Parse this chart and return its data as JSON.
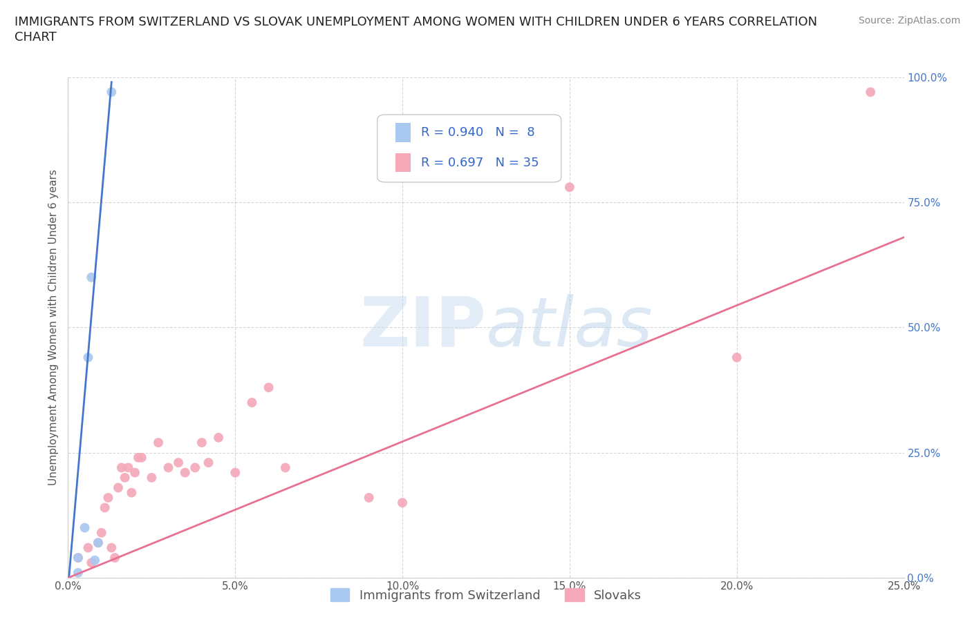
{
  "title_line1": "IMMIGRANTS FROM SWITZERLAND VS SLOVAK UNEMPLOYMENT AMONG WOMEN WITH CHILDREN UNDER 6 YEARS CORRELATION",
  "title_line2": "CHART",
  "source": "Source: ZipAtlas.com",
  "ylabel": "Unemployment Among Women with Children Under 6 years",
  "xlim": [
    0,
    0.25
  ],
  "ylim": [
    0,
    1.0
  ],
  "xticks": [
    0.0,
    0.05,
    0.1,
    0.15,
    0.2,
    0.25
  ],
  "yticks": [
    0.0,
    0.25,
    0.5,
    0.75,
    1.0
  ],
  "xtick_labels": [
    "0.0%",
    "5.0%",
    "10.0%",
    "15.0%",
    "20.0%",
    "25.0%"
  ],
  "ytick_labels": [
    "0.0%",
    "25.0%",
    "50.0%",
    "75.0%",
    "100.0%"
  ],
  "blue_scatter_x": [
    0.003,
    0.003,
    0.005,
    0.006,
    0.007,
    0.008,
    0.009,
    0.013
  ],
  "blue_scatter_y": [
    0.01,
    0.04,
    0.1,
    0.44,
    0.6,
    0.035,
    0.07,
    0.97
  ],
  "pink_scatter_x": [
    0.003,
    0.006,
    0.007,
    0.009,
    0.01,
    0.011,
    0.012,
    0.013,
    0.014,
    0.015,
    0.016,
    0.017,
    0.018,
    0.019,
    0.02,
    0.021,
    0.022,
    0.025,
    0.027,
    0.03,
    0.033,
    0.035,
    0.038,
    0.04,
    0.042,
    0.045,
    0.05,
    0.055,
    0.06,
    0.065,
    0.09,
    0.1,
    0.15,
    0.2,
    0.24
  ],
  "pink_scatter_y": [
    0.04,
    0.06,
    0.03,
    0.07,
    0.09,
    0.14,
    0.16,
    0.06,
    0.04,
    0.18,
    0.22,
    0.2,
    0.22,
    0.17,
    0.21,
    0.24,
    0.24,
    0.2,
    0.27,
    0.22,
    0.23,
    0.21,
    0.22,
    0.27,
    0.23,
    0.28,
    0.21,
    0.35,
    0.38,
    0.22,
    0.16,
    0.15,
    0.78,
    0.44,
    0.97
  ],
  "blue_line_x": [
    0.0,
    0.013
  ],
  "blue_line_y": [
    -0.02,
    0.99
  ],
  "pink_line_x": [
    0.0,
    0.25
  ],
  "pink_line_y": [
    0.0,
    0.68
  ],
  "blue_scatter_color": "#a8c8f0",
  "pink_scatter_color": "#f4a8b8",
  "blue_line_color": "#4477cc",
  "pink_line_color": "#e87090",
  "R_blue": "0.940",
  "N_blue": "8",
  "R_pink": "0.697",
  "N_pink": "35",
  "legend_label_blue": "Immigrants from Switzerland",
  "legend_label_pink": "Slovaks",
  "watermark_zip": "ZIP",
  "watermark_atlas": "atlas",
  "bg_color": "#ffffff",
  "grid_color": "#cccccc",
  "title_fontsize": 13,
  "axis_label_fontsize": 11,
  "tick_fontsize": 11,
  "legend_fontsize": 13,
  "source_fontsize": 10,
  "scatter_size": 100
}
